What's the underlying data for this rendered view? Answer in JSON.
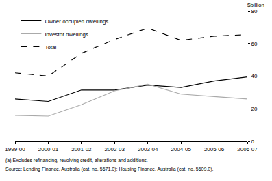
{
  "chart_data": {
    "type": "line",
    "ylabel": "$billion",
    "categories": [
      "1999-00",
      "2000-01",
      "2001-02",
      "2002-03",
      "2003-04",
      "2004-05",
      "2005-06",
      "2006-07"
    ],
    "series": [
      {
        "name": "Owner occupied dwellings",
        "color": "#000000",
        "line_style": "solid",
        "values": [
          26,
          24.5,
          31.5,
          31.5,
          34.5,
          33,
          37,
          39.5
        ]
      },
      {
        "name": "Investor dwellings",
        "color": "#aaaaaa",
        "line_style": "solid",
        "values": [
          16,
          15.5,
          22.5,
          31,
          35,
          29,
          27.5,
          26
        ]
      },
      {
        "name": "Total",
        "color": "#000000",
        "line_style": "dashed",
        "values": [
          42,
          40,
          54,
          62.5,
          69.5,
          62,
          64.5,
          65.5
        ]
      }
    ],
    "ylim": [
      0,
      80
    ],
    "yticks": [
      0,
      20,
      40,
      60,
      80
    ],
    "grid": false,
    "legend": "top-left",
    "notes": [
      "(a) Excludes refinancing, revolving credit, alterations and additions.",
      "Source: Lending Finance, Australia (cat. no. 5671.0); Housing Finance, Australia (cat. no. 5609.0)."
    ]
  }
}
